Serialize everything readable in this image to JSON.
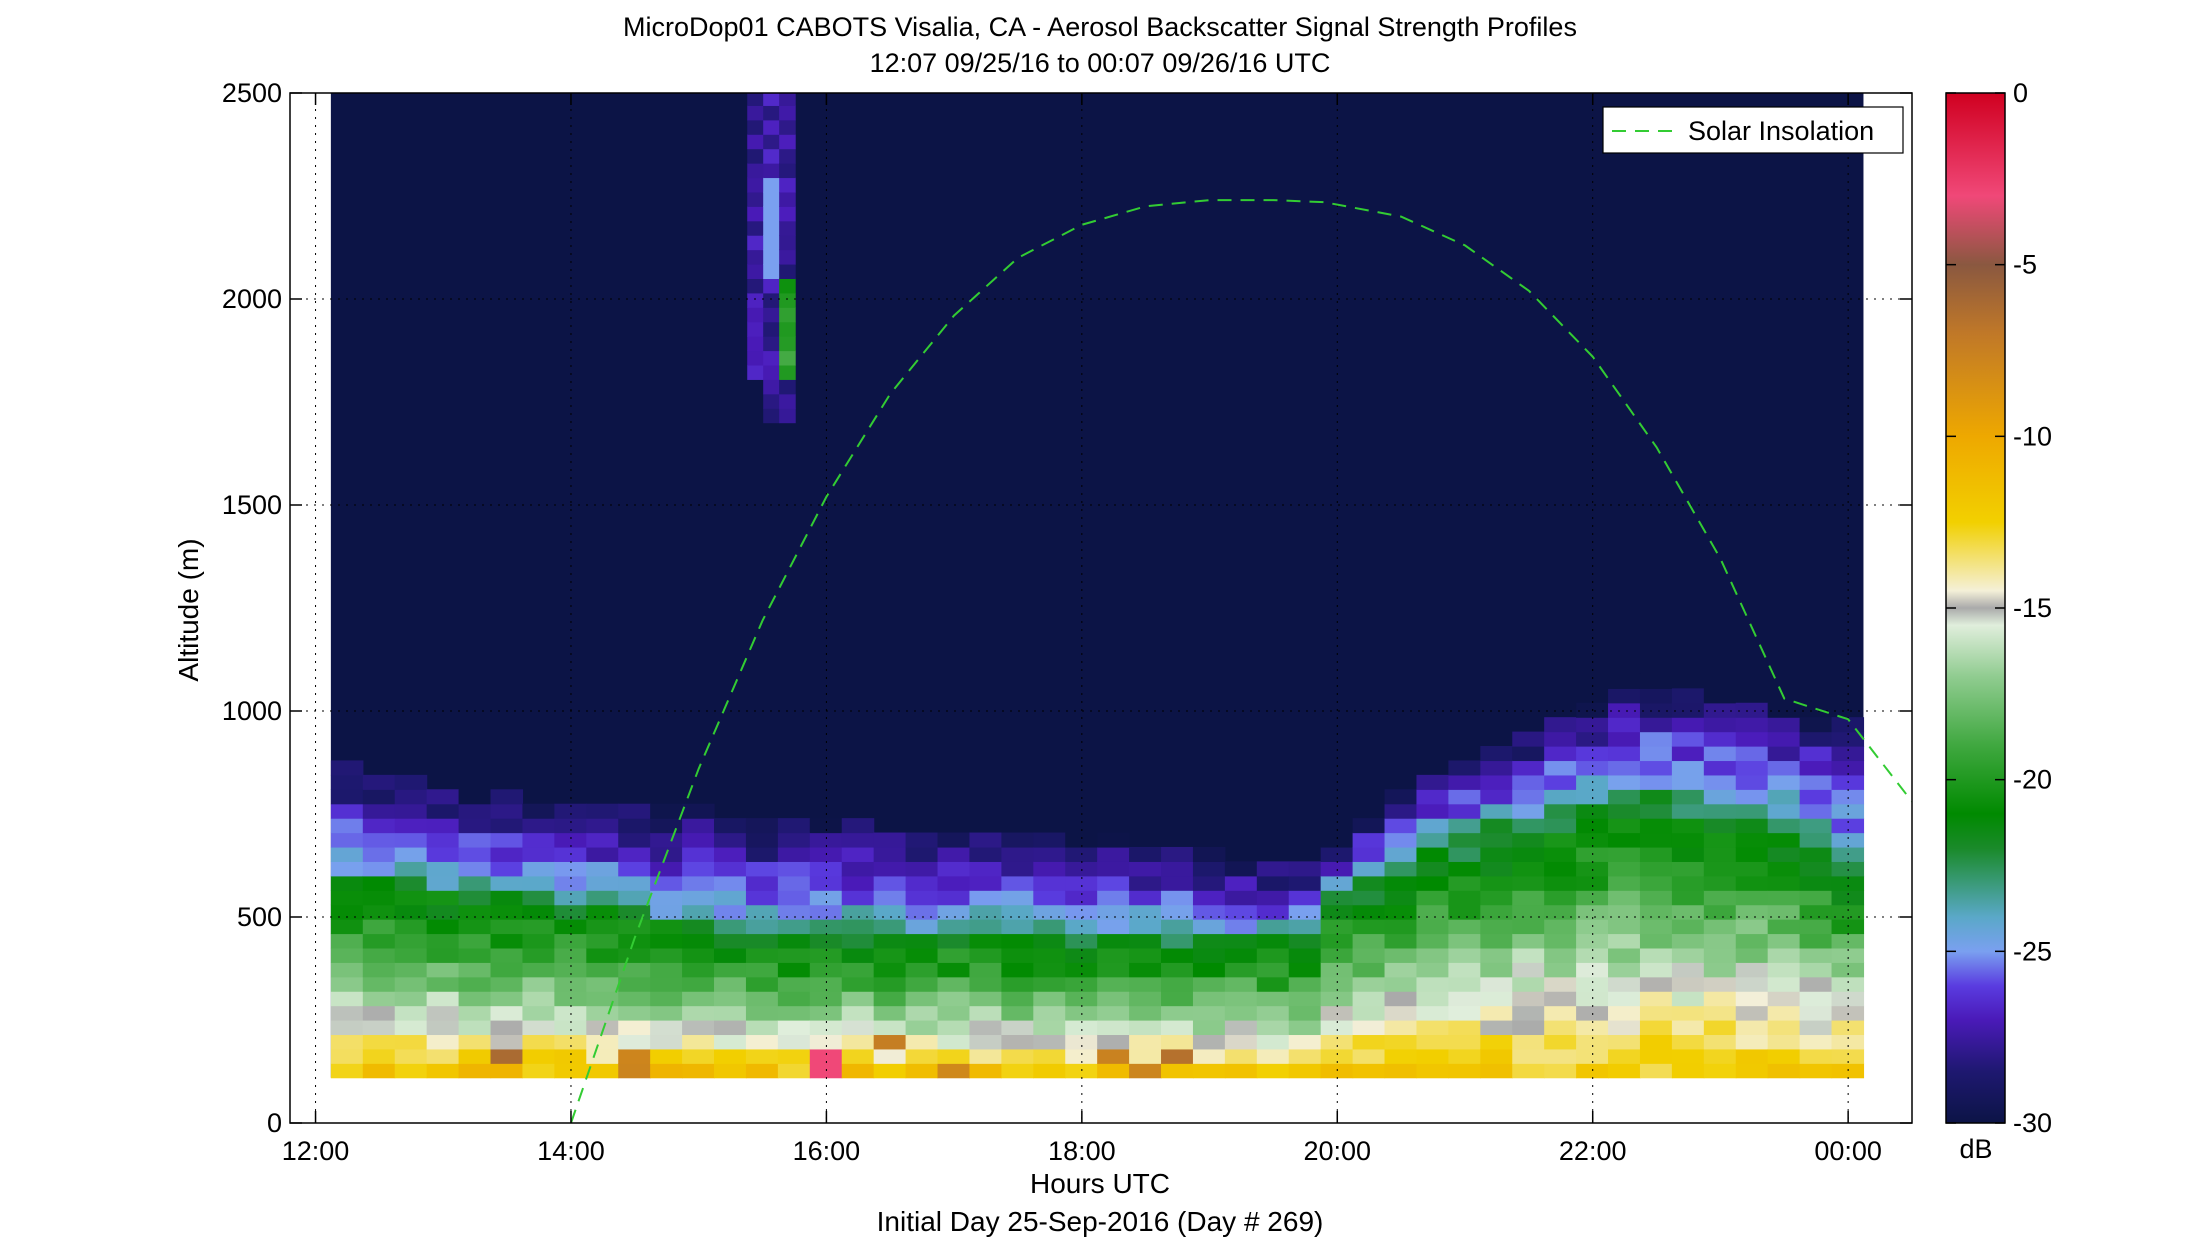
{
  "chart_data": {
    "type": "heatmap",
    "title": "MicroDop01 CABOTS Visalia, CA - Aerosol Backscatter Signal Strength Profiles",
    "subtitle": "12:07 09/25/16 to 00:07 09/26/16  UTC",
    "xlabel": "Hours UTC",
    "xlabel2": "Initial Day 25-Sep-2016 (Day # 269)",
    "ylabel": "Altitude (m)",
    "xlim": [
      11.8,
      24.5
    ],
    "ylim": [
      0,
      2500
    ],
    "x_ticks": [
      {
        "value": 12,
        "label": "12:00"
      },
      {
        "value": 14,
        "label": "14:00"
      },
      {
        "value": 16,
        "label": "16:00"
      },
      {
        "value": 18,
        "label": "18:00"
      },
      {
        "value": 20,
        "label": "20:00"
      },
      {
        "value": 22,
        "label": "22:00"
      },
      {
        "value": 24,
        "label": "00:00"
      }
    ],
    "y_ticks": [
      {
        "value": 0,
        "label": "0"
      },
      {
        "value": 500,
        "label": "500"
      },
      {
        "value": 1000,
        "label": "1000"
      },
      {
        "value": 1500,
        "label": "1500"
      },
      {
        "value": 2000,
        "label": "2000"
      },
      {
        "value": 2500,
        "label": "2500"
      }
    ],
    "grid": "dotted",
    "data_extent": {
      "x": [
        12.12,
        24.12
      ],
      "y": [
        110,
        2500
      ]
    },
    "time_bin_hours": 0.25,
    "altitude_bin_m": 35,
    "background_db": -30,
    "legend": {
      "entries": [
        {
          "label": "Solar Insolation",
          "style": "dashed",
          "color": "#33cc33"
        }
      ],
      "placement": "top-right"
    },
    "colorbar": {
      "label": "dB",
      "range": [
        -30,
        0
      ],
      "ticks": [
        {
          "value": 0,
          "label": "0"
        },
        {
          "value": -5,
          "label": "-5"
        },
        {
          "value": -10,
          "label": "-10"
        },
        {
          "value": -15,
          "label": "-15"
        },
        {
          "value": -20,
          "label": "-20"
        },
        {
          "value": -25,
          "label": "-25"
        },
        {
          "value": -30,
          "label": "-30"
        }
      ],
      "stops": [
        {
          "db": -30,
          "color": "#0c1446"
        },
        {
          "db": -28.5,
          "color": "#1e1870"
        },
        {
          "db": -27,
          "color": "#4a1ab8"
        },
        {
          "db": -26,
          "color": "#5a3ce0"
        },
        {
          "db": -25,
          "color": "#7aa0f0"
        },
        {
          "db": -24,
          "color": "#5aa8c8"
        },
        {
          "db": -23,
          "color": "#3a9a78"
        },
        {
          "db": -22,
          "color": "#1a8a2a"
        },
        {
          "db": -21,
          "color": "#008a00"
        },
        {
          "db": -19,
          "color": "#40a840"
        },
        {
          "db": -17,
          "color": "#90cc90"
        },
        {
          "db": -15.5,
          "color": "#e0eedc"
        },
        {
          "db": -15,
          "color": "#aaaaaa"
        },
        {
          "db": -14.5,
          "color": "#f4f0d8"
        },
        {
          "db": -12.5,
          "color": "#f2d000"
        },
        {
          "db": -10,
          "color": "#eea800"
        },
        {
          "db": -7,
          "color": "#c07828"
        },
        {
          "db": -5,
          "color": "#8a5840"
        },
        {
          "db": -3,
          "color": "#f04878"
        },
        {
          "db": 0,
          "color": "#d00020"
        }
      ]
    },
    "profile": {
      "time": [
        12.12,
        12.5,
        13,
        13.5,
        14,
        14.5,
        15,
        15.5,
        16,
        16.5,
        17,
        17.5,
        18,
        18.5,
        19,
        19.5,
        19.83,
        20,
        20.5,
        21,
        21.5,
        22,
        22.2,
        22.5,
        23,
        23.5,
        24,
        24.12
      ],
      "boundary_layer_top_m": [
        860,
        820,
        800,
        780,
        760,
        760,
        740,
        720,
        720,
        700,
        700,
        690,
        680,
        660,
        640,
        620,
        620,
        680,
        800,
        870,
        930,
        1020,
        1080,
        1060,
        1020,
        1000,
        960,
        960
      ],
      "aerosol_layer_top_m": [
        600,
        590,
        580,
        560,
        540,
        520,
        480,
        460,
        470,
        470,
        470,
        460,
        460,
        450,
        450,
        450,
        460,
        560,
        650,
        700,
        750,
        780,
        810,
        800,
        780,
        740,
        640,
        620
      ]
    },
    "elevated_plume": {
      "time": [
        15.38,
        15.75
      ],
      "altitude_m": [
        1700,
        2500
      ]
    },
    "series": [
      {
        "name": "Solar Insolation",
        "style": "dashed",
        "x": [
          14.0,
          14.5,
          15.0,
          15.5,
          16.0,
          16.5,
          17.0,
          17.5,
          18.0,
          18.5,
          19.0,
          19.5,
          19.9,
          20.5,
          21.0,
          21.5,
          22.0,
          22.5,
          23.0,
          23.5,
          24.0,
          24.5
        ],
        "y": [
          0,
          450,
          860,
          1220,
          1520,
          1770,
          1960,
          2100,
          2180,
          2225,
          2240,
          2240,
          2235,
          2200,
          2130,
          2020,
          1860,
          1640,
          1370,
          1030,
          980,
          780
        ]
      }
    ]
  }
}
